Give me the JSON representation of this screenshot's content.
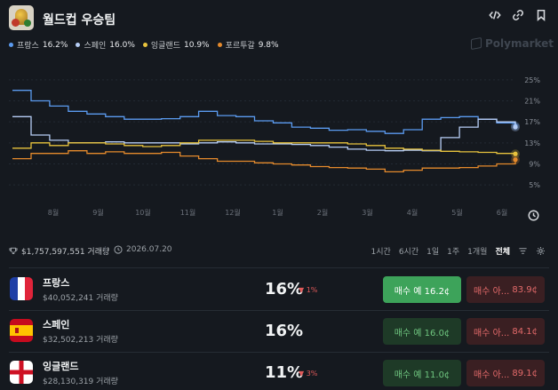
{
  "header": {
    "title": "월드컵 우승팀",
    "icons": [
      "code-icon",
      "link-icon",
      "bookmark-icon"
    ]
  },
  "legend": [
    {
      "name": "프랑스",
      "pct": "16.2%",
      "color": "#5b9bf0"
    },
    {
      "name": "스페인",
      "pct": "16.0%",
      "color": "#b6cdf5"
    },
    {
      "name": "잉글랜드",
      "pct": "10.9%",
      "color": "#e8c33d"
    },
    {
      "name": "포르투갈",
      "pct": "9.8%",
      "color": "#e58a2c"
    }
  ],
  "watermark": "Polymarket",
  "chart_data": {
    "type": "line",
    "yticks": [
      "25%",
      "21%",
      "17%",
      "13%",
      "9%",
      "5%"
    ],
    "xticks": [
      "8월",
      "9월",
      "10월",
      "11월",
      "12월",
      "1월",
      "2월",
      "3월",
      "4월",
      "5월",
      "6월"
    ],
    "ylim": [
      3,
      27
    ],
    "grid": true,
    "series": [
      {
        "name": "프랑스",
        "color": "#5b9bf0",
        "values": [
          23,
          21,
          20,
          19,
          18.5,
          18,
          17.5,
          17.5,
          17.6,
          18,
          19,
          18.2,
          18,
          17.2,
          16.8,
          16,
          15.8,
          15.4,
          15.5,
          15.2,
          14.8,
          15.5,
          17.5,
          17.8,
          18,
          17.5,
          16.8,
          16.2
        ]
      },
      {
        "name": "스페인",
        "color": "#b6cdf5",
        "values": [
          18,
          14.5,
          13.5,
          13,
          13,
          13.2,
          13,
          13,
          13,
          12.8,
          13,
          13.2,
          13,
          12.8,
          12.8,
          12.7,
          12.5,
          12.2,
          11.8,
          11.6,
          11.5,
          11.6,
          11.5,
          14,
          16,
          17.5,
          17,
          16.0
        ]
      },
      {
        "name": "잉글랜드",
        "color": "#e8c33d",
        "values": [
          12,
          13,
          12.5,
          13,
          13,
          12.8,
          12.5,
          12.3,
          12.5,
          13,
          13.5,
          13.5,
          13.5,
          13.3,
          13,
          13,
          13,
          13,
          12.8,
          12.5,
          12,
          11.8,
          11.6,
          11.4,
          11.3,
          11.2,
          11,
          10.9
        ]
      },
      {
        "name": "포르투갈",
        "color": "#e58a2c",
        "values": [
          10,
          11,
          11,
          11.5,
          11,
          11.3,
          11,
          11,
          11.2,
          10.5,
          10,
          9.5,
          9.5,
          9.2,
          9,
          8.8,
          8.5,
          8.3,
          8.2,
          8.0,
          7.5,
          7.8,
          8.2,
          8.2,
          8.3,
          8.6,
          9.0,
          9.8
        ]
      }
    ]
  },
  "stats": {
    "volume": "$1,757,597,551 거래량",
    "date": "2026.07.20",
    "ranges": [
      "1시간",
      "6시간",
      "1일",
      "1주",
      "1개월",
      "전체"
    ],
    "active_range": "전체"
  },
  "outcomes": [
    {
      "name": "프랑스",
      "volume": "$40,052,241 거래량",
      "prob": "16%",
      "change": "▼ 1%",
      "buy": "매수 예 16.2¢",
      "sell_label": "매수 아...",
      "sell_price": "83.9¢",
      "buy_active": true
    },
    {
      "name": "스페인",
      "volume": "$32,502,213 거래량",
      "prob": "16%",
      "change": "",
      "buy": "매수 예 16.0¢",
      "sell_label": "매수 아...",
      "sell_price": "84.1¢",
      "buy_active": false
    },
    {
      "name": "잉글랜드",
      "volume": "$28,130,319 거래량",
      "prob": "11%",
      "change": "▼ 3%",
      "buy": "매수 예 11.0¢",
      "sell_label": "매수 아...",
      "sell_price": "89.1¢",
      "buy_active": false
    }
  ]
}
